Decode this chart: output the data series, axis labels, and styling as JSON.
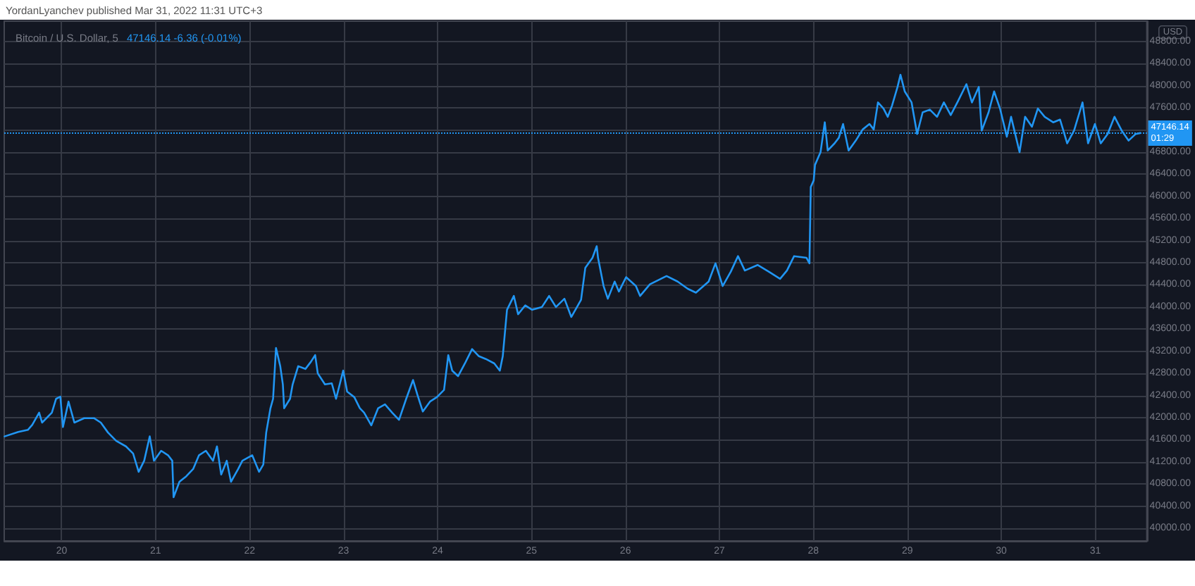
{
  "chart_data": {
    "type": "line",
    "title": "Bitcoin / U.S. Dollar, 5",
    "subtitle": "47146.14 -6.36 (-0.01%)",
    "ylabel": "USD",
    "annotations": [
      "YordanLyanchev published Mar 31, 2022 11:31 UTC+3",
      "01:29"
    ],
    "color": "#2196f3",
    "marker": "none",
    "line_style": "solid",
    "grid": true,
    "x": [
      "2022-03-19T09:25",
      "2022-03-19T12:55",
      "2022-03-19T15:25",
      "2022-03-19T16:30",
      "2022-03-19T18:15",
      "2022-03-19T19:00",
      "2022-03-19T21:30",
      "2022-03-19T22:35",
      "2022-03-19T23:40",
      "2022-03-20T00:20",
      "2022-03-20T01:45",
      "2022-03-20T03:15",
      "2022-03-20T05:45",
      "2022-03-20T08:15",
      "2022-03-20T10:00",
      "2022-03-20T11:50",
      "2022-03-20T13:55",
      "2022-03-20T16:25",
      "2022-03-20T18:15",
      "2022-03-20T19:40",
      "2022-03-20T21:05",
      "2022-03-20T22:30",
      "2022-03-20T23:35",
      "2022-03-21T01:25",
      "2022-03-21T03:10",
      "2022-03-21T04:15",
      "2022-03-21T04:35",
      "2022-03-21T06:05",
      "2022-03-21T07:50",
      "2022-03-21T09:35",
      "2022-03-21T11:05",
      "2022-03-21T12:50",
      "2022-03-21T14:40",
      "2022-03-21T15:40",
      "2022-03-21T16:45",
      "2022-03-21T18:10",
      "2022-03-21T19:15",
      "2022-03-21T21:05",
      "2022-03-21T22:10",
      "2022-03-22T00:40",
      "2022-03-22T02:25",
      "2022-03-22T03:30",
      "2022-03-22T04:15",
      "2022-03-22T05:20",
      "2022-03-22T06:00",
      "2022-03-22T06:45",
      "2022-03-22T07:50",
      "2022-03-22T08:30",
      "2022-03-22T08:50",
      "2022-03-22T10:20",
      "2022-03-22T11:00",
      "2022-03-22T12:25",
      "2022-03-22T14:15",
      "2022-03-22T15:40",
      "2022-03-22T16:45",
      "2022-03-22T17:25",
      "2022-03-22T19:15",
      "2022-03-22T21:00",
      "2022-03-22T22:05",
      "2022-03-22T23:55",
      "2022-03-23T00:55",
      "2022-03-23T02:45",
      "2022-03-23T04:10",
      "2022-03-23T05:15",
      "2022-03-23T07:05",
      "2022-03-23T08:50",
      "2022-03-23T10:35",
      "2022-03-23T12:25",
      "2022-03-23T14:10",
      "2022-03-23T16:00",
      "2022-03-23T17:45",
      "2022-03-23T18:50",
      "2022-03-23T20:15",
      "2022-03-23T22:05",
      "2022-03-23T23:50",
      "2022-03-24T01:40",
      "2022-03-24T02:45",
      "2022-03-24T03:45",
      "2022-03-24T05:15",
      "2022-03-24T07:00",
      "2022-03-24T08:50",
      "2022-03-24T10:35",
      "2022-03-24T12:20",
      "2022-03-24T14:30",
      "2022-03-24T15:55",
      "2022-03-24T16:40",
      "2022-03-24T17:45",
      "2022-03-24T19:30",
      "2022-03-24T20:35",
      "2022-03-24T22:25",
      "2022-03-25T00:10",
      "2022-03-25T02:40",
      "2022-03-25T04:30",
      "2022-03-25T06:15",
      "2022-03-25T08:25",
      "2022-03-25T10:10",
      "2022-03-25T12:40",
      "2022-03-25T13:45",
      "2022-03-25T15:35",
      "2022-03-25T16:40",
      "2022-03-25T17:00",
      "2022-03-25T18:25",
      "2022-03-25T19:30",
      "2022-03-25T21:15",
      "2022-03-25T22:20",
      "2022-03-26T00:10",
      "2022-03-26T02:40",
      "2022-03-26T03:45",
      "2022-03-26T06:15",
      "2022-03-26T10:30",
      "2022-03-26T13:20",
      "2022-03-26T15:55",
      "2022-03-26T18:00",
      "2022-03-26T21:15",
      "2022-03-26T23:00",
      "2022-03-27T00:50",
      "2022-03-27T02:55",
      "2022-03-27T04:45",
      "2022-03-27T06:30",
      "2022-03-27T09:45",
      "2022-03-27T12:35",
      "2022-03-27T15:30",
      "2022-03-27T17:15",
      "2022-03-27T19:05",
      "2022-03-27T22:15",
      "2022-03-27T23:00",
      "2022-03-27T23:20",
      "2022-03-28T00:05",
      "2022-03-28T00:25",
      "2022-03-28T01:50",
      "2022-03-28T02:55",
      "2022-03-28T03:40",
      "2022-03-28T05:25",
      "2022-03-28T06:30",
      "2022-03-28T07:35",
      "2022-03-28T09:00",
      "2022-03-28T10:50",
      "2022-03-28T12:35",
      "2022-03-28T14:20",
      "2022-03-28T15:25",
      "2022-03-28T16:30",
      "2022-03-28T17:55",
      "2022-03-28T19:00",
      "2022-03-28T20:05",
      "2022-03-28T21:30",
      "2022-03-28T22:15",
      "2022-03-28T23:20",
      "2022-03-29T01:05",
      "2022-03-29T02:30",
      "2022-03-29T03:55",
      "2022-03-29T05:45",
      "2022-03-29T07:35",
      "2022-03-29T09:20",
      "2022-03-29T11:05",
      "2022-03-29T12:55",
      "2022-03-29T15:05",
      "2022-03-29T16:30",
      "2022-03-29T18:15",
      "2022-03-29T19:00",
      "2022-03-29T20:45",
      "2022-03-29T22:10",
      "2022-03-29T23:40",
      "2022-03-30T01:25",
      "2022-03-30T02:30",
      "2022-03-30T04:40",
      "2022-03-30T06:05",
      "2022-03-30T07:50",
      "2022-03-30T09:20",
      "2022-03-30T11:05",
      "2022-03-30T13:15",
      "2022-03-30T15:00",
      "2022-03-30T16:50",
      "2022-03-30T18:35",
      "2022-03-30T20:45",
      "2022-03-30T22:10",
      "2022-03-30T23:55",
      "2022-03-31T01:25",
      "2022-03-31T03:10",
      "2022-03-31T04:55",
      "2022-03-31T06:45",
      "2022-03-31T08:30",
      "2022-03-31T10:20",
      "2022-03-31T11:30"
    ],
    "values": [
      41660,
      41740,
      41780,
      41870,
      42090,
      41910,
      42090,
      42340,
      42380,
      41830,
      42290,
      41910,
      41990,
      41990,
      41910,
      41730,
      41580,
      41480,
      41350,
      41020,
      41220,
      41660,
      41220,
      41400,
      41320,
      41220,
      40560,
      40840,
      40940,
      41070,
      41320,
      41400,
      41220,
      41480,
      40970,
      41220,
      40840,
      41070,
      41220,
      41320,
      41020,
      41150,
      41730,
      42170,
      42340,
      43260,
      42930,
      42600,
      42170,
      42340,
      42600,
      42930,
      42880,
      43010,
      43130,
      42800,
      42600,
      42620,
      42340,
      42850,
      42470,
      42370,
      42170,
      42090,
      41860,
      42170,
      42240,
      42090,
      41960,
      42340,
      42680,
      42420,
      42110,
      42290,
      42370,
      42500,
      43130,
      42850,
      42750,
      42980,
      43240,
      43110,
      43060,
      42980,
      42850,
      43110,
      43950,
      44200,
      43870,
      44030,
      43950,
      44000,
      44200,
      44000,
      44150,
      43820,
      44130,
      44710,
      44890,
      45100,
      44890,
      44380,
      44150,
      44460,
      44280,
      44540,
      44380,
      44200,
      44410,
      44560,
      44460,
      44330,
      44260,
      44460,
      44790,
      44380,
      44640,
      44920,
      44660,
      44760,
      44640,
      44510,
      44660,
      44920,
      44890,
      44790,
      46170,
      46290,
      46570,
      46800,
      47340,
      46830,
      46960,
      47060,
      47310,
      46830,
      47010,
      47210,
      47310,
      47210,
      47700,
      47590,
      47440,
      47640,
      47980,
      48200,
      47900,
      47700,
      47130,
      47520,
      47570,
      47440,
      47700,
      47470,
      47720,
      48030,
      47700,
      47980,
      47190,
      47520,
      47900,
      47590,
      47080,
      47440,
      46800,
      47440,
      47260,
      47590,
      47440,
      47340,
      47390,
      46960,
      47190,
      47700,
      46960,
      47310,
      46960,
      47130,
      47440,
      47190,
      47010,
      47130,
      47146.14
    ],
    "xlim": [
      "2022-03-19T09:20",
      "2022-03-31T13:10"
    ],
    "xticks": [
      {
        "value": "2022-03-20",
        "label": "20"
      },
      {
        "value": "2022-03-21",
        "label": "21"
      },
      {
        "value": "2022-03-22",
        "label": "22"
      },
      {
        "value": "2022-03-23",
        "label": "23"
      },
      {
        "value": "2022-03-24",
        "label": "24"
      },
      {
        "value": "2022-03-25",
        "label": "25"
      },
      {
        "value": "2022-03-26",
        "label": "26"
      },
      {
        "value": "2022-03-27",
        "label": "27"
      },
      {
        "value": "2022-03-28",
        "label": "28"
      },
      {
        "value": "2022-03-29",
        "label": "29"
      },
      {
        "value": "2022-03-30",
        "label": "30"
      },
      {
        "value": "2022-03-31",
        "label": "31"
      }
    ],
    "ylim": [
      39770,
      49170
    ],
    "yticks": [
      {
        "value": 40000,
        "label": "40000.00"
      },
      {
        "value": 40400,
        "label": "40400.00"
      },
      {
        "value": 40800,
        "label": "40800.00"
      },
      {
        "value": 41200,
        "label": "41200.00"
      },
      {
        "value": 41600,
        "label": "41600.00"
      },
      {
        "value": 42000,
        "label": "42000.00"
      },
      {
        "value": 42400,
        "label": "42400.00"
      },
      {
        "value": 42800,
        "label": "42800.00"
      },
      {
        "value": 43200,
        "label": "43200.00"
      },
      {
        "value": 43600,
        "label": "43600.00"
      },
      {
        "value": 44000,
        "label": "44000.00"
      },
      {
        "value": 44400,
        "label": "44400.00"
      },
      {
        "value": 44800,
        "label": "44800.00"
      },
      {
        "value": 45200,
        "label": "45200.00"
      },
      {
        "value": 45600,
        "label": "45600.00"
      },
      {
        "value": 46000,
        "label": "46000.00"
      },
      {
        "value": 46400,
        "label": "46400.00"
      },
      {
        "value": 46800,
        "label": "46800.00"
      },
      {
        "value": 47200,
        "label": null
      },
      {
        "value": 47600,
        "label": "47600.00"
      },
      {
        "value": 48000,
        "label": "48000.00"
      },
      {
        "value": 48400,
        "label": "48400.00"
      },
      {
        "value": 48800,
        "label": "48800.00"
      }
    ],
    "ref_lines": [
      {
        "axis": "y",
        "value": 47146.14,
        "label": "47146.14",
        "color": "#2196f3",
        "line_style": "dotted"
      }
    ]
  }
}
